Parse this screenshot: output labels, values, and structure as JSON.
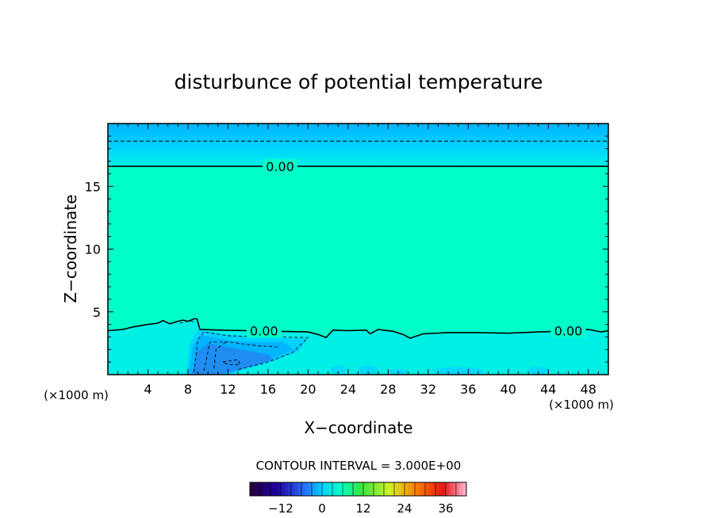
{
  "chart_data": {
    "type": "heatmap",
    "title": "disturbunce of potential temperature",
    "xlabel": "X−coordinate",
    "ylabel": "Z−coordinate",
    "x_unit_left": "(×1000 m)",
    "x_unit_right": "(×1000 m)",
    "xlim": [
      0,
      50
    ],
    "ylim": [
      0,
      20
    ],
    "x_ticks": [
      4,
      8,
      12,
      16,
      20,
      24,
      28,
      32,
      36,
      40,
      44,
      48
    ],
    "y_ticks": [
      5,
      10,
      15
    ],
    "zero_contour_labels": [
      {
        "text": "0.00",
        "x": 17.2,
        "z": 16.6
      },
      {
        "text": "0.00",
        "x": 15.6,
        "z": 3.5
      },
      {
        "text": "0.00",
        "x": 46.0,
        "z": 3.5
      }
    ],
    "upper_zero_contour_z": 16.6,
    "dashed_contour_z": 18.6,
    "lower_zero_contour": [
      [
        0,
        3.5
      ],
      [
        1.5,
        3.6
      ],
      [
        2.5,
        3.8
      ],
      [
        4,
        4.0
      ],
      [
        5,
        4.1
      ],
      [
        5.5,
        4.3
      ],
      [
        6.2,
        4.05
      ],
      [
        6.8,
        4.2
      ],
      [
        7.5,
        4.35
      ],
      [
        8,
        4.25
      ],
      [
        8.6,
        4.45
      ],
      [
        8.9,
        4.45
      ],
      [
        9.2,
        3.6
      ],
      [
        11,
        3.55
      ],
      [
        14,
        3.5
      ],
      [
        17,
        3.45
      ],
      [
        20,
        3.4
      ],
      [
        21,
        3.2
      ],
      [
        21.8,
        2.95
      ],
      [
        22.5,
        3.55
      ],
      [
        24,
        3.5
      ],
      [
        25.8,
        3.55
      ],
      [
        26.2,
        3.25
      ],
      [
        27,
        3.6
      ],
      [
        28.5,
        3.45
      ],
      [
        29.5,
        3.2
      ],
      [
        30.2,
        2.9
      ],
      [
        31.5,
        3.25
      ],
      [
        34,
        3.35
      ],
      [
        37,
        3.35
      ],
      [
        40,
        3.3
      ],
      [
        43,
        3.4
      ],
      [
        45,
        3.45
      ],
      [
        48,
        3.6
      ],
      [
        49.3,
        3.4
      ],
      [
        50,
        3.5
      ]
    ],
    "field_colors": {
      "zero": "#00ffc8",
      "slightly_negative": "#00f0e6",
      "negative_1": "#00d2ff",
      "negative_2": "#00b4ff",
      "negative_3": "#1e8cf0"
    },
    "colorbar": {
      "title": "CONTOUR INTERVAL = 3.000E+00",
      "interval": 3.0,
      "min": -21,
      "max": 42,
      "tick_values": [
        -12,
        0,
        12,
        24,
        36
      ],
      "tick_labels": [
        "−12",
        "0",
        "12",
        "24",
        "36"
      ]
    }
  }
}
